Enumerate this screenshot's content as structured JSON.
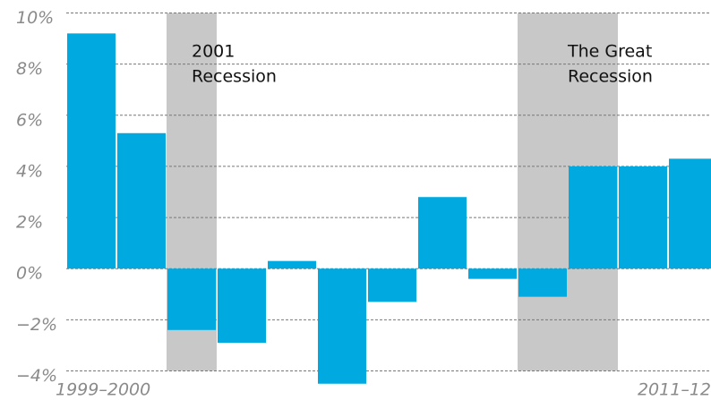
{
  "chart_data": {
    "type": "bar",
    "categories": [
      "1999–2000",
      null,
      null,
      null,
      null,
      null,
      null,
      null,
      null,
      null,
      null,
      null,
      "2011–12"
    ],
    "values": [
      9.2,
      5.3,
      -2.4,
      -2.9,
      0.3,
      -4.5,
      -1.3,
      2.8,
      -0.4,
      -1.1,
      4.0,
      4.0,
      4.3
    ],
    "color": "#00a9e0",
    "ylim": [
      -4,
      10
    ],
    "yticks": [
      {
        "value": -4,
        "label": "−4%"
      },
      {
        "value": -2,
        "label": "−2%"
      },
      {
        "value": 0,
        "label": "0%"
      },
      {
        "value": 2,
        "label": "2%"
      },
      {
        "value": 4,
        "label": "4%"
      },
      {
        "value": 6,
        "label": "6%"
      },
      {
        "value": 8,
        "label": "8%"
      },
      {
        "value": 10,
        "label": "10%"
      }
    ],
    "grid": true,
    "shaded": [
      {
        "start": 2,
        "end": 2,
        "color": "#c8c8c8",
        "label": [
          "2001",
          "Recession"
        ]
      },
      {
        "start": 9,
        "end": 10,
        "color": "#c8c8c8",
        "label": [
          "The Great",
          "Recession"
        ]
      }
    ]
  }
}
